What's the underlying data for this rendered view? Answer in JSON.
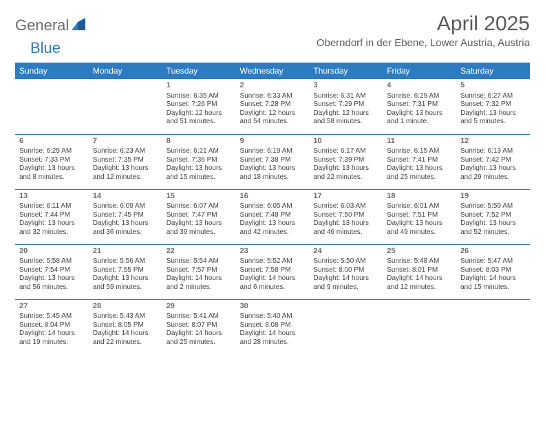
{
  "logo": {
    "text_general": "General",
    "text_blue": "Blue"
  },
  "header": {
    "title": "April 2025",
    "location": "Oberndorf in der Ebene, Lower Austria, Austria"
  },
  "colors": {
    "header_bg": "#2f7bbf",
    "header_text": "#ffffff",
    "row_border": "#2f7bbf",
    "body_text": "#444444",
    "title_text": "#5a5a5a"
  },
  "calendar": {
    "day_names": [
      "Sunday",
      "Monday",
      "Tuesday",
      "Wednesday",
      "Thursday",
      "Friday",
      "Saturday"
    ],
    "weeks": [
      [
        null,
        null,
        {
          "n": "1",
          "sr": "Sunrise: 6:35 AM",
          "ss": "Sunset: 7:26 PM",
          "dl": "Daylight: 12 hours and 51 minutes."
        },
        {
          "n": "2",
          "sr": "Sunrise: 6:33 AM",
          "ss": "Sunset: 7:28 PM",
          "dl": "Daylight: 12 hours and 54 minutes."
        },
        {
          "n": "3",
          "sr": "Sunrise: 6:31 AM",
          "ss": "Sunset: 7:29 PM",
          "dl": "Daylight: 12 hours and 58 minutes."
        },
        {
          "n": "4",
          "sr": "Sunrise: 6:29 AM",
          "ss": "Sunset: 7:31 PM",
          "dl": "Daylight: 13 hours and 1 minute."
        },
        {
          "n": "5",
          "sr": "Sunrise: 6:27 AM",
          "ss": "Sunset: 7:32 PM",
          "dl": "Daylight: 13 hours and 5 minutes."
        }
      ],
      [
        {
          "n": "6",
          "sr": "Sunrise: 6:25 AM",
          "ss": "Sunset: 7:33 PM",
          "dl": "Daylight: 13 hours and 8 minutes."
        },
        {
          "n": "7",
          "sr": "Sunrise: 6:23 AM",
          "ss": "Sunset: 7:35 PM",
          "dl": "Daylight: 13 hours and 12 minutes."
        },
        {
          "n": "8",
          "sr": "Sunrise: 6:21 AM",
          "ss": "Sunset: 7:36 PM",
          "dl": "Daylight: 13 hours and 15 minutes."
        },
        {
          "n": "9",
          "sr": "Sunrise: 6:19 AM",
          "ss": "Sunset: 7:38 PM",
          "dl": "Daylight: 13 hours and 18 minutes."
        },
        {
          "n": "10",
          "sr": "Sunrise: 6:17 AM",
          "ss": "Sunset: 7:39 PM",
          "dl": "Daylight: 13 hours and 22 minutes."
        },
        {
          "n": "11",
          "sr": "Sunrise: 6:15 AM",
          "ss": "Sunset: 7:41 PM",
          "dl": "Daylight: 13 hours and 25 minutes."
        },
        {
          "n": "12",
          "sr": "Sunrise: 6:13 AM",
          "ss": "Sunset: 7:42 PM",
          "dl": "Daylight: 13 hours and 29 minutes."
        }
      ],
      [
        {
          "n": "13",
          "sr": "Sunrise: 6:11 AM",
          "ss": "Sunset: 7:44 PM",
          "dl": "Daylight: 13 hours and 32 minutes."
        },
        {
          "n": "14",
          "sr": "Sunrise: 6:09 AM",
          "ss": "Sunset: 7:45 PM",
          "dl": "Daylight: 13 hours and 36 minutes."
        },
        {
          "n": "15",
          "sr": "Sunrise: 6:07 AM",
          "ss": "Sunset: 7:47 PM",
          "dl": "Daylight: 13 hours and 39 minutes."
        },
        {
          "n": "16",
          "sr": "Sunrise: 6:05 AM",
          "ss": "Sunset: 7:48 PM",
          "dl": "Daylight: 13 hours and 42 minutes."
        },
        {
          "n": "17",
          "sr": "Sunrise: 6:03 AM",
          "ss": "Sunset: 7:50 PM",
          "dl": "Daylight: 13 hours and 46 minutes."
        },
        {
          "n": "18",
          "sr": "Sunrise: 6:01 AM",
          "ss": "Sunset: 7:51 PM",
          "dl": "Daylight: 13 hours and 49 minutes."
        },
        {
          "n": "19",
          "sr": "Sunrise: 5:59 AM",
          "ss": "Sunset: 7:52 PM",
          "dl": "Daylight: 13 hours and 52 minutes."
        }
      ],
      [
        {
          "n": "20",
          "sr": "Sunrise: 5:58 AM",
          "ss": "Sunset: 7:54 PM",
          "dl": "Daylight: 13 hours and 56 minutes."
        },
        {
          "n": "21",
          "sr": "Sunrise: 5:56 AM",
          "ss": "Sunset: 7:55 PM",
          "dl": "Daylight: 13 hours and 59 minutes."
        },
        {
          "n": "22",
          "sr": "Sunrise: 5:54 AM",
          "ss": "Sunset: 7:57 PM",
          "dl": "Daylight: 14 hours and 2 minutes."
        },
        {
          "n": "23",
          "sr": "Sunrise: 5:52 AM",
          "ss": "Sunset: 7:58 PM",
          "dl": "Daylight: 14 hours and 6 minutes."
        },
        {
          "n": "24",
          "sr": "Sunrise: 5:50 AM",
          "ss": "Sunset: 8:00 PM",
          "dl": "Daylight: 14 hours and 9 minutes."
        },
        {
          "n": "25",
          "sr": "Sunrise: 5:48 AM",
          "ss": "Sunset: 8:01 PM",
          "dl": "Daylight: 14 hours and 12 minutes."
        },
        {
          "n": "26",
          "sr": "Sunrise: 5:47 AM",
          "ss": "Sunset: 8:03 PM",
          "dl": "Daylight: 14 hours and 15 minutes."
        }
      ],
      [
        {
          "n": "27",
          "sr": "Sunrise: 5:45 AM",
          "ss": "Sunset: 8:04 PM",
          "dl": "Daylight: 14 hours and 19 minutes."
        },
        {
          "n": "28",
          "sr": "Sunrise: 5:43 AM",
          "ss": "Sunset: 8:05 PM",
          "dl": "Daylight: 14 hours and 22 minutes."
        },
        {
          "n": "29",
          "sr": "Sunrise: 5:41 AM",
          "ss": "Sunset: 8:07 PM",
          "dl": "Daylight: 14 hours and 25 minutes."
        },
        {
          "n": "30",
          "sr": "Sunrise: 5:40 AM",
          "ss": "Sunset: 8:08 PM",
          "dl": "Daylight: 14 hours and 28 minutes."
        },
        null,
        null,
        null
      ]
    ]
  }
}
